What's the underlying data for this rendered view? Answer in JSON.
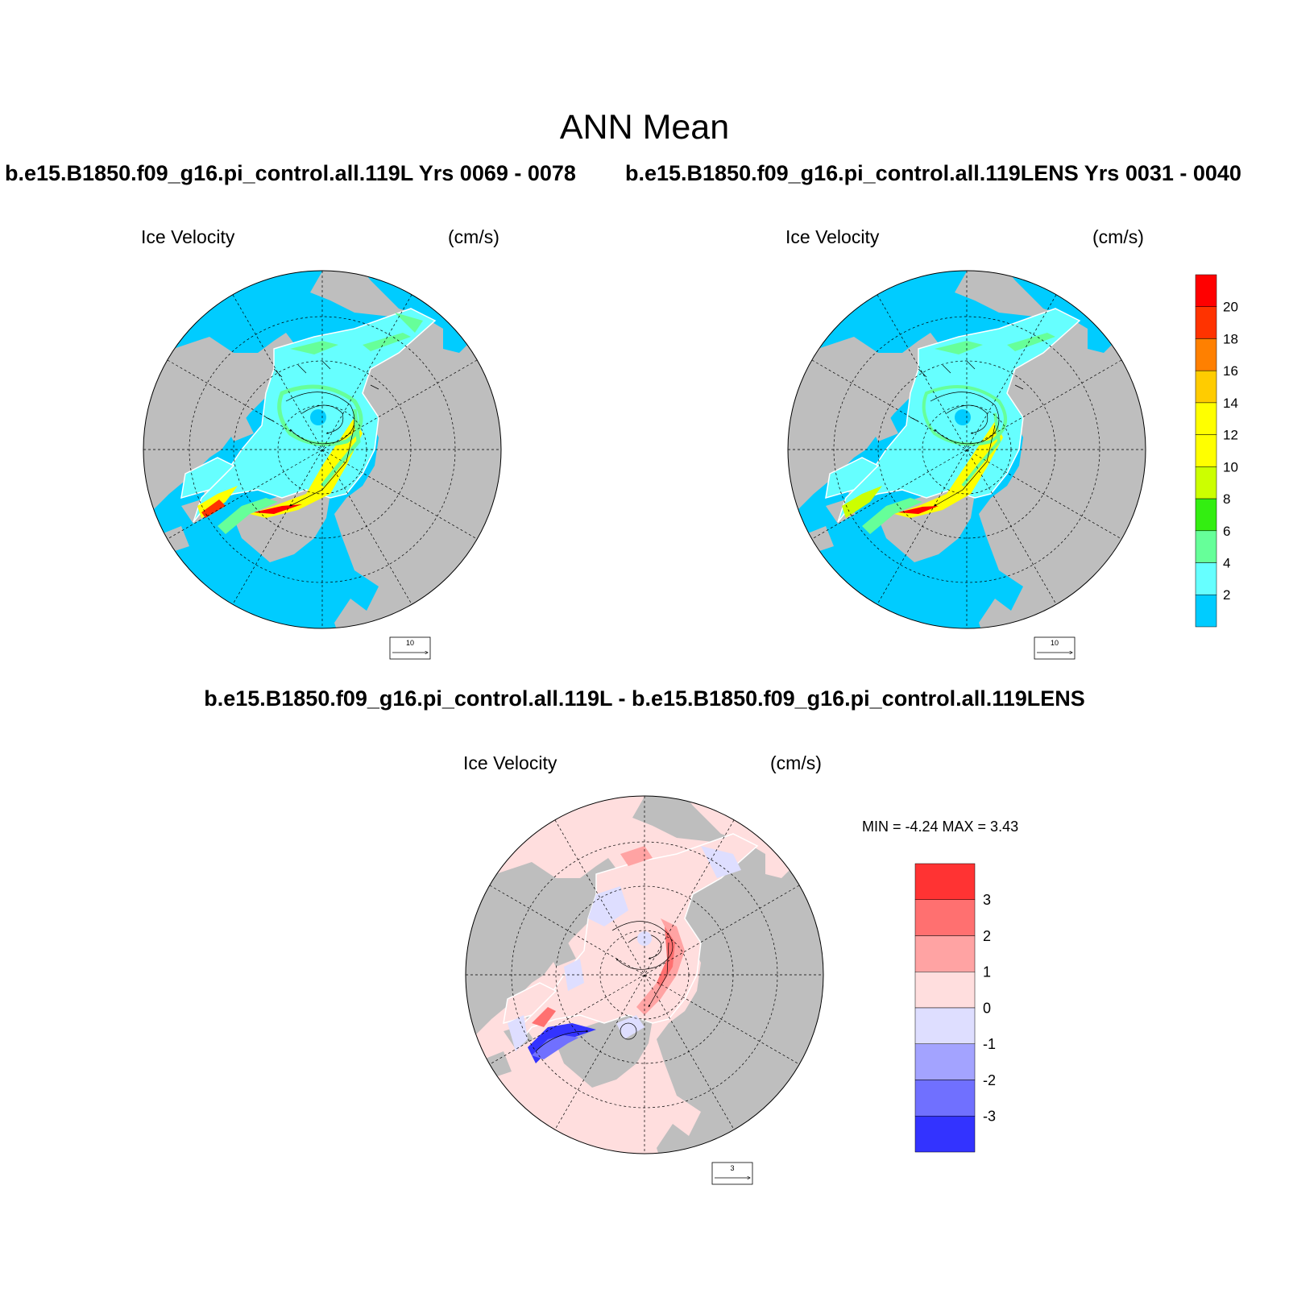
{
  "main_title": "ANN Mean",
  "panels": [
    {
      "case_title": "b.e15.B1850.f09_g16.pi_control.all.119L  Yrs 0069 - 0078",
      "variable": "Ice Velocity",
      "units": "(cm/s)",
      "ref_vector": "10"
    },
    {
      "case_title": "b.e15.B1850.f09_g16.pi_control.all.119LENS  Yrs 0031 - 0040",
      "variable": "Ice Velocity",
      "units": "(cm/s)",
      "ref_vector": "10"
    }
  ],
  "diff_panel": {
    "title": "b.e15.B1850.f09_g16.pi_control.all.119L - b.e15.B1850.f09_g16.pi_control.all.119LENS",
    "variable": "Ice Velocity",
    "units": "(cm/s)",
    "ref_vector": "3",
    "stats": "MIN =  -4.24 MAX =   3.43"
  },
  "colorbar_main": {
    "labels": [
      "20",
      "18",
      "16",
      "14",
      "12",
      "10",
      "8",
      "6",
      "4",
      "2"
    ],
    "colors": [
      "#ff0000",
      "#ff3300",
      "#ff8000",
      "#ffcc00",
      "#ffff00",
      "#ffff00",
      "#ccff00",
      "#33ee11",
      "#66ff99",
      "#66ffff",
      "#00ccff"
    ]
  },
  "colorbar_diff": {
    "labels": [
      "3",
      "2",
      "1",
      "0",
      "-1",
      "-2",
      "-3"
    ],
    "colors": [
      "#ff3333",
      "#ff7070",
      "#ffa3a3",
      "#ffdede",
      "#dedeff",
      "#a3a3ff",
      "#7070ff",
      "#3333ff"
    ]
  },
  "colors": {
    "land": "#bebebe",
    "open_ocean_main": "#00ccff",
    "open_ocean_diff": "#ffdede"
  }
}
